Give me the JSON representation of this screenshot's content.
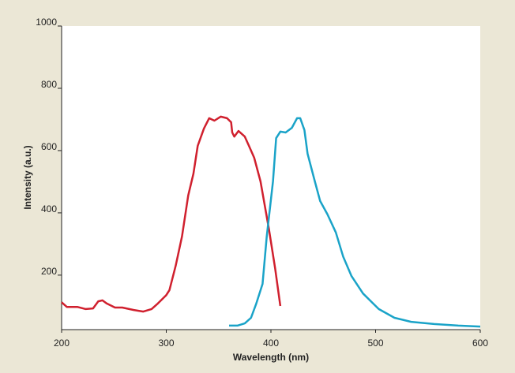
{
  "chart_data": {
    "type": "line",
    "x_label": "Wavelength (nm)",
    "y_label": "Intensity (a.u.)",
    "xlim": [
      200,
      600
    ],
    "xticks": [
      200,
      300,
      400,
      500,
      600
    ],
    "ylim": [
      25,
      1000
    ],
    "yticks": [
      200,
      400,
      600,
      800,
      1000
    ],
    "grid": false,
    "series": [
      {
        "color": "#d0202e",
        "x": [
          200,
          205,
          215,
          223,
          230,
          235,
          239,
          243,
          251,
          258,
          269,
          278,
          286,
          292,
          300,
          303,
          309,
          315,
          321,
          326,
          330,
          336,
          341,
          346,
          352,
          358,
          362,
          363,
          365,
          369,
          375,
          379,
          384,
          390,
          398,
          404,
          409
        ],
        "values": [
          113,
          98,
          98,
          91,
          93,
          116,
          119,
          109,
          96,
          96,
          88,
          83,
          91,
          109,
          136,
          152,
          230,
          324,
          456,
          526,
          615,
          671,
          704,
          696,
          709,
          704,
          691,
          658,
          645,
          663,
          645,
          615,
          577,
          501,
          349,
          222,
          101
        ]
      },
      {
        "color": "#1aa3c8",
        "x": [
          360,
          368,
          375,
          381,
          386,
          392,
          396,
          402,
          405,
          409,
          414,
          420,
          425,
          428,
          432,
          435,
          442,
          447,
          454,
          462,
          469,
          477,
          488,
          503,
          518,
          534,
          556,
          579,
          600
        ],
        "values": [
          38,
          38,
          45,
          63,
          109,
          172,
          324,
          501,
          640,
          661,
          658,
          673,
          704,
          704,
          666,
          590,
          501,
          438,
          395,
          337,
          260,
          197,
          141,
          91,
          63,
          50,
          43,
          38,
          35
        ]
      }
    ]
  }
}
